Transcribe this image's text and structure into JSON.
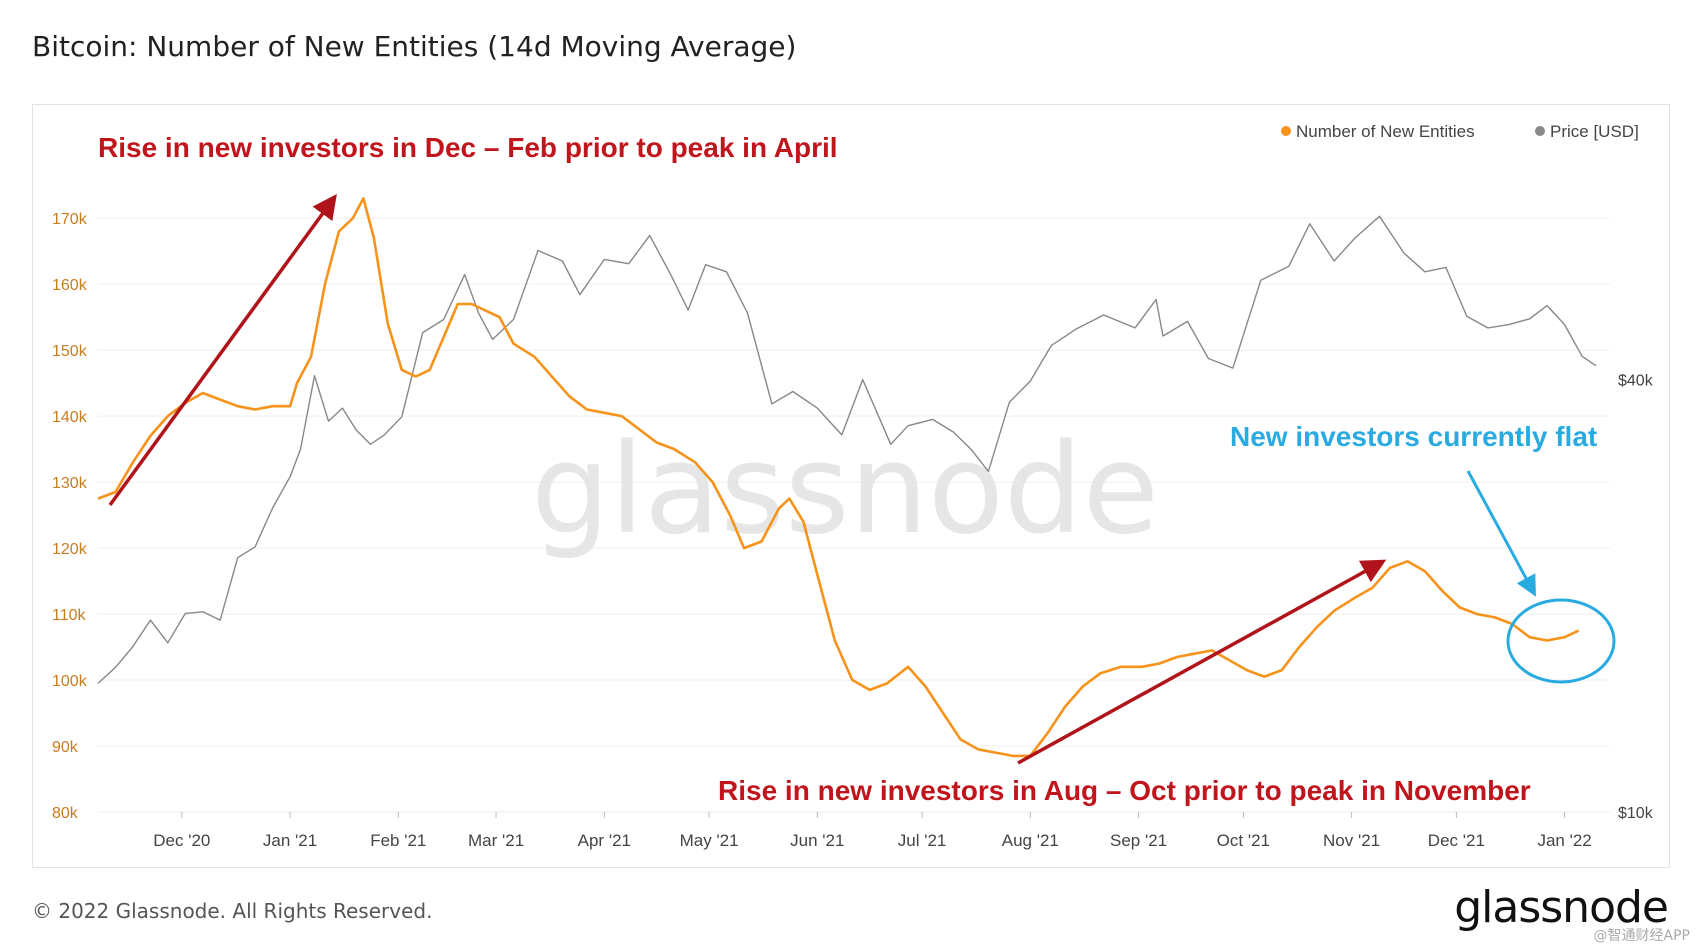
{
  "header": {
    "title": "Bitcoin: Number of New Entities (14d Moving Average)"
  },
  "footer": {
    "copyright": "© 2022 Glassnode. All Rights Reserved.",
    "logo": "glassnode",
    "watermark": "@智通财经APP"
  },
  "chart_data": {
    "type": "line",
    "title": "Bitcoin: Number of New Entities (14d Moving Average)",
    "watermark": "glassnode",
    "legend": {
      "placement": "top-right",
      "entries": [
        {
          "name": "Number of New Entities",
          "color": "#f7931a"
        },
        {
          "name": "Price [USD]",
          "color": "#888888"
        }
      ]
    },
    "x_ticks": [
      "Dec '20",
      "Jan '21",
      "Feb '21",
      "Mar '21",
      "Apr '21",
      "May '21",
      "Jun '21",
      "Jul '21",
      "Aug '21",
      "Sep '21",
      "Oct '21",
      "Nov '21",
      "Dec '21",
      "Jan '22"
    ],
    "x_range": [
      "2020-11-07",
      "2022-01-14"
    ],
    "y_left": {
      "ticks": [
        "80k",
        "90k",
        "100k",
        "110k",
        "120k",
        "130k",
        "140k",
        "150k",
        "160k",
        "170k"
      ],
      "range": [
        80000,
        172000
      ],
      "color": "#c87d1e"
    },
    "y_right": {
      "ticks": [
        "$10k",
        "$40k"
      ],
      "scale": "log",
      "range": [
        10000,
        70000
      ]
    },
    "series": [
      {
        "name": "Number of New Entities",
        "color": "#f7931a",
        "axis": "left",
        "points": [
          [
            "2020-11-07",
            127500
          ],
          [
            "2020-11-12",
            128500
          ],
          [
            "2020-11-17",
            133000
          ],
          [
            "2020-11-22",
            137000
          ],
          [
            "2020-11-27",
            140000
          ],
          [
            "2020-12-02",
            142000
          ],
          [
            "2020-12-07",
            143500
          ],
          [
            "2020-12-12",
            142500
          ],
          [
            "2020-12-17",
            141500
          ],
          [
            "2020-12-22",
            141000
          ],
          [
            "2020-12-27",
            141500
          ],
          [
            "2021-01-01",
            141500
          ],
          [
            "2021-01-03",
            145000
          ],
          [
            "2021-01-07",
            149000
          ],
          [
            "2021-01-11",
            160000
          ],
          [
            "2021-01-15",
            168000
          ],
          [
            "2021-01-19",
            170000
          ],
          [
            "2021-01-22",
            173000
          ],
          [
            "2021-01-25",
            167000
          ],
          [
            "2021-01-29",
            154000
          ],
          [
            "2021-02-02",
            147000
          ],
          [
            "2021-02-06",
            146000
          ],
          [
            "2021-02-10",
            147000
          ],
          [
            "2021-02-14",
            152000
          ],
          [
            "2021-02-18",
            157000
          ],
          [
            "2021-02-22",
            157000
          ],
          [
            "2021-02-26",
            156000
          ],
          [
            "2021-03-02",
            155000
          ],
          [
            "2021-03-06",
            151000
          ],
          [
            "2021-03-12",
            149000
          ],
          [
            "2021-03-17",
            146000
          ],
          [
            "2021-03-22",
            143000
          ],
          [
            "2021-03-27",
            141000
          ],
          [
            "2021-04-01",
            140500
          ],
          [
            "2021-04-06",
            140000
          ],
          [
            "2021-04-11",
            138000
          ],
          [
            "2021-04-16",
            136000
          ],
          [
            "2021-04-21",
            135000
          ],
          [
            "2021-04-27",
            133000
          ],
          [
            "2021-05-02",
            130000
          ],
          [
            "2021-05-07",
            125000
          ],
          [
            "2021-05-11",
            120000
          ],
          [
            "2021-05-16",
            121000
          ],
          [
            "2021-05-21",
            126000
          ],
          [
            "2021-05-24",
            127500
          ],
          [
            "2021-05-28",
            124000
          ],
          [
            "2021-06-01",
            116000
          ],
          [
            "2021-06-06",
            106000
          ],
          [
            "2021-06-11",
            100000
          ],
          [
            "2021-06-16",
            98500
          ],
          [
            "2021-06-21",
            99500
          ],
          [
            "2021-06-27",
            102000
          ],
          [
            "2021-07-02",
            99000
          ],
          [
            "2021-07-07",
            95000
          ],
          [
            "2021-07-12",
            91000
          ],
          [
            "2021-07-17",
            89500
          ],
          [
            "2021-07-22",
            89000
          ],
          [
            "2021-07-27",
            88500
          ],
          [
            "2021-08-01",
            88500
          ],
          [
            "2021-08-06",
            92000
          ],
          [
            "2021-08-11",
            96000
          ],
          [
            "2021-08-16",
            99000
          ],
          [
            "2021-08-21",
            101000
          ],
          [
            "2021-08-27",
            102000
          ],
          [
            "2021-09-02",
            102000
          ],
          [
            "2021-09-07",
            102500
          ],
          [
            "2021-09-12",
            103500
          ],
          [
            "2021-09-17",
            104000
          ],
          [
            "2021-09-22",
            104500
          ],
          [
            "2021-09-27",
            103000
          ],
          [
            "2021-10-02",
            101500
          ],
          [
            "2021-10-07",
            100500
          ],
          [
            "2021-10-12",
            101500
          ],
          [
            "2021-10-17",
            105000
          ],
          [
            "2021-10-22",
            108000
          ],
          [
            "2021-10-27",
            110500
          ],
          [
            "2021-11-02",
            112500
          ],
          [
            "2021-11-07",
            114000
          ],
          [
            "2021-11-12",
            117000
          ],
          [
            "2021-11-17",
            118000
          ],
          [
            "2021-11-22",
            116500
          ],
          [
            "2021-11-27",
            113500
          ],
          [
            "2021-12-02",
            111000
          ],
          [
            "2021-12-07",
            110000
          ],
          [
            "2021-12-12",
            109500
          ],
          [
            "2021-12-17",
            108500
          ],
          [
            "2021-12-22",
            106500
          ],
          [
            "2021-12-27",
            106000
          ],
          [
            "2022-01-01",
            106500
          ],
          [
            "2022-01-05",
            107500
          ]
        ]
      },
      {
        "name": "Price [USD]",
        "color": "#888888",
        "axis": "right",
        "points": [
          [
            "2020-11-07",
            15100
          ],
          [
            "2020-11-12",
            15900
          ],
          [
            "2020-11-17",
            17000
          ],
          [
            "2020-11-22",
            18500
          ],
          [
            "2020-11-27",
            17200
          ],
          [
            "2020-12-02",
            18900
          ],
          [
            "2020-12-07",
            19000
          ],
          [
            "2020-12-12",
            18500
          ],
          [
            "2020-12-17",
            22600
          ],
          [
            "2020-12-22",
            23400
          ],
          [
            "2020-12-27",
            26500
          ],
          [
            "2021-01-01",
            29300
          ],
          [
            "2021-01-04",
            32000
          ],
          [
            "2021-01-08",
            40500
          ],
          [
            "2021-01-12",
            35000
          ],
          [
            "2021-01-16",
            36500
          ],
          [
            "2021-01-20",
            34000
          ],
          [
            "2021-01-24",
            32500
          ],
          [
            "2021-01-28",
            33500
          ],
          [
            "2021-02-02",
            35500
          ],
          [
            "2021-02-08",
            46500
          ],
          [
            "2021-02-14",
            48500
          ],
          [
            "2021-02-20",
            56000
          ],
          [
            "2021-02-24",
            49500
          ],
          [
            "2021-02-28",
            45500
          ],
          [
            "2021-03-06",
            48500
          ],
          [
            "2021-03-13",
            60500
          ],
          [
            "2021-03-20",
            58500
          ],
          [
            "2021-03-25",
            52500
          ],
          [
            "2021-04-01",
            58800
          ],
          [
            "2021-04-08",
            58000
          ],
          [
            "2021-04-14",
            63500
          ],
          [
            "2021-04-20",
            56000
          ],
          [
            "2021-04-25",
            50000
          ],
          [
            "2021-04-30",
            57800
          ],
          [
            "2021-05-06",
            56500
          ],
          [
            "2021-05-12",
            49500
          ],
          [
            "2021-05-19",
            37000
          ],
          [
            "2021-05-25",
            38500
          ],
          [
            "2021-06-01",
            36500
          ],
          [
            "2021-06-08",
            33500
          ],
          [
            "2021-06-14",
            40000
          ],
          [
            "2021-06-22",
            32500
          ],
          [
            "2021-06-27",
            34500
          ],
          [
            "2021-07-04",
            35200
          ],
          [
            "2021-07-10",
            33800
          ],
          [
            "2021-07-15",
            32000
          ],
          [
            "2021-07-20",
            29800
          ],
          [
            "2021-07-26",
            37200
          ],
          [
            "2021-08-01",
            39800
          ],
          [
            "2021-08-07",
            44600
          ],
          [
            "2021-08-14",
            47000
          ],
          [
            "2021-08-22",
            49200
          ],
          [
            "2021-08-31",
            47200
          ],
          [
            "2021-09-06",
            51700
          ],
          [
            "2021-09-08",
            46000
          ],
          [
            "2021-09-15",
            48200
          ],
          [
            "2021-09-21",
            42800
          ],
          [
            "2021-09-28",
            41500
          ],
          [
            "2021-10-06",
            55000
          ],
          [
            "2021-10-14",
            57500
          ],
          [
            "2021-10-20",
            65900
          ],
          [
            "2021-10-27",
            58500
          ],
          [
            "2021-11-02",
            63000
          ],
          [
            "2021-11-09",
            67500
          ],
          [
            "2021-11-16",
            60000
          ],
          [
            "2021-11-22",
            56500
          ],
          [
            "2021-11-28",
            57300
          ],
          [
            "2021-12-04",
            49000
          ],
          [
            "2021-12-10",
            47200
          ],
          [
            "2021-12-16",
            47700
          ],
          [
            "2021-12-22",
            48600
          ],
          [
            "2021-12-27",
            50700
          ],
          [
            "2022-01-01",
            47700
          ],
          [
            "2022-01-06",
            43100
          ],
          [
            "2022-01-10",
            41800
          ]
        ]
      }
    ],
    "annotations": [
      {
        "text": "Rise in new investors in Dec – Feb prior to peak in April",
        "color": "#c0151c"
      },
      {
        "text": "Rise in new investors in Aug – Oct prior to peak in November",
        "color": "#c0151c"
      },
      {
        "text": "New investors currently flat",
        "color": "#29abe2"
      }
    ]
  }
}
